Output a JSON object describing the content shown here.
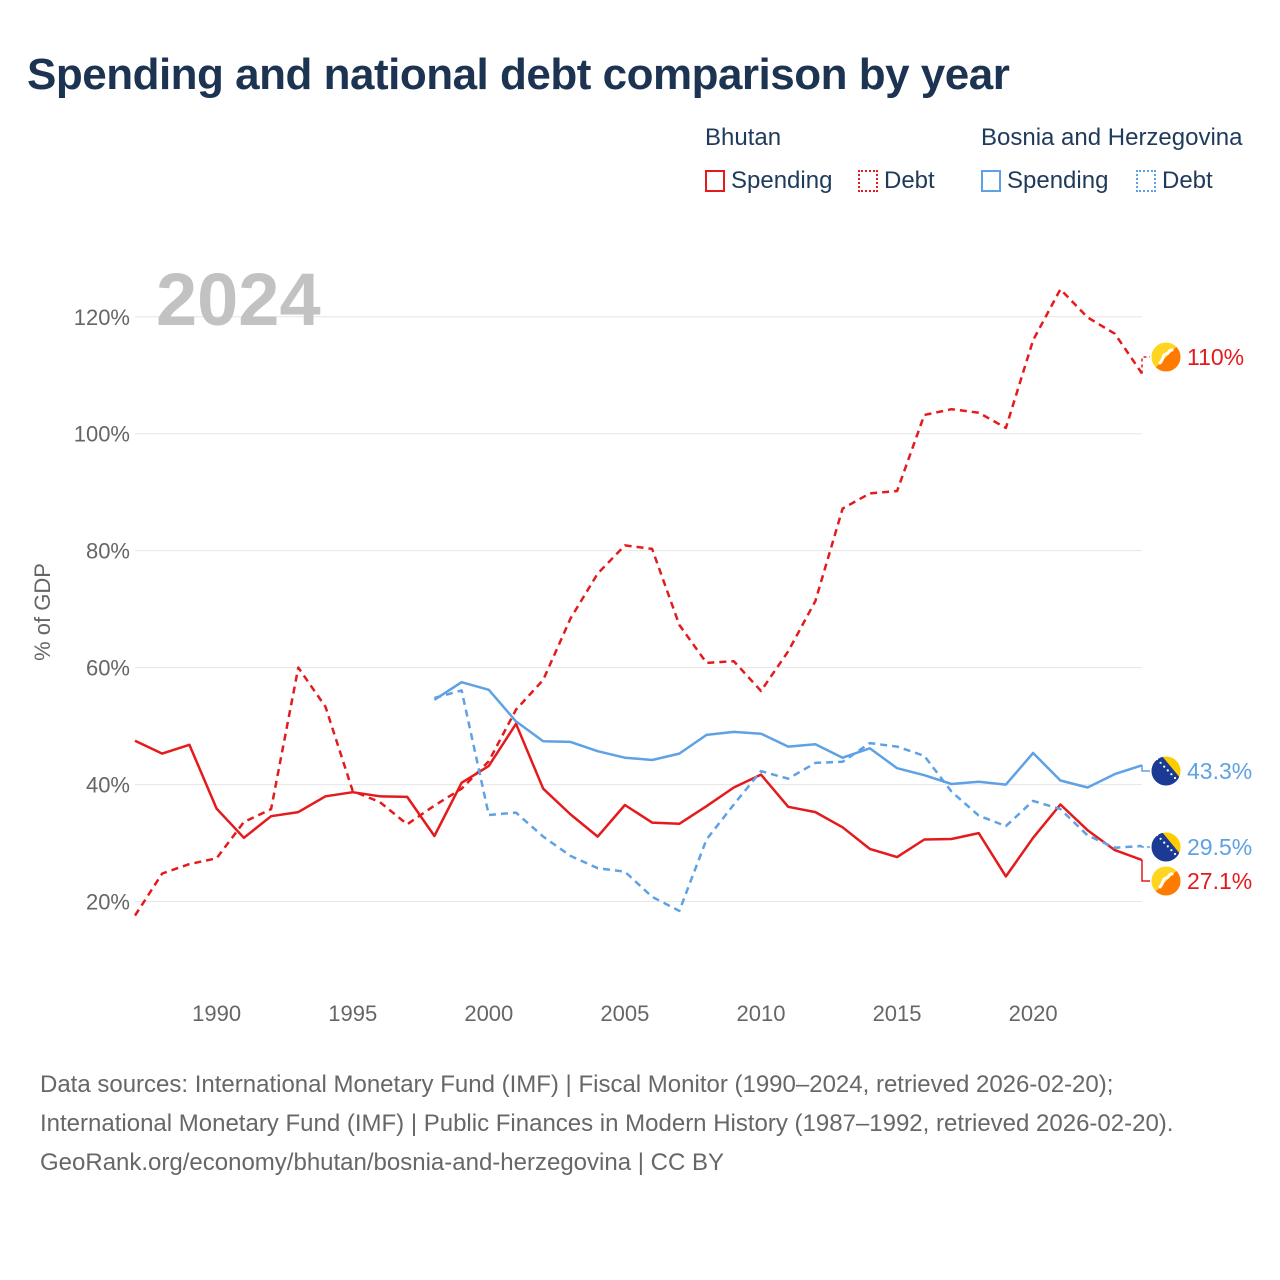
{
  "title": "Spending and national debt comparison by year",
  "legend": {
    "groups": [
      {
        "name": "Bhutan",
        "color": "#e41a1c",
        "items": [
          {
            "label": "Spending",
            "style": "solid"
          },
          {
            "label": "Debt",
            "style": "dotted"
          }
        ]
      },
      {
        "name": "Bosnia and Herzegovina",
        "color": "#5ea1e4",
        "items": [
          {
            "label": "Spending",
            "style": "solid"
          },
          {
            "label": "Debt",
            "style": "dotted"
          }
        ]
      }
    ]
  },
  "year_label": "2024",
  "source": {
    "line1": "Data sources: International Monetary Fund (IMF) | Fiscal Monitor (1990–2024, retrieved 2026-02-20); International Monetary Fund (IMF) | Public Finances in Modern History (1987–1992, retrieved 2026-02-20).",
    "line2": "GeoRank.org/economy/bhutan/bosnia-and-herzegovina | CC BY"
  },
  "chart_data": {
    "type": "line",
    "title": "Spending and national debt comparison by year",
    "xlabel": "",
    "ylabel": "% of GDP",
    "xlim": [
      1987,
      2024
    ],
    "ylim": [
      10,
      128
    ],
    "grid": true,
    "x_ticks": [
      1990,
      1995,
      2000,
      2005,
      2010,
      2015,
      2020
    ],
    "y_ticks": [
      20,
      40,
      60,
      80,
      100,
      120
    ],
    "y_tick_labels": [
      "20%",
      "40%",
      "60%",
      "80%",
      "100%",
      "120%"
    ],
    "series": [
      {
        "name": "Bhutan Spending",
        "country": "Bhutan",
        "color": "#e41a1c",
        "dash": "solid",
        "x": [
          1987,
          1988,
          1989,
          1990,
          1991,
          1992,
          1993,
          1994,
          1995,
          1996,
          1997,
          1998,
          1999,
          2000,
          2001,
          2002,
          2003,
          2004,
          2005,
          2006,
          2007,
          2008,
          2009,
          2010,
          2011,
          2012,
          2013,
          2014,
          2015,
          2016,
          2017,
          2018,
          2019,
          2020,
          2021,
          2022,
          2023,
          2024
        ],
        "values": [
          47.5,
          45.3,
          46.8,
          35.9,
          30.9,
          34.6,
          35.3,
          38.0,
          38.7,
          38.0,
          37.9,
          31.2,
          40.3,
          43.2,
          50.4,
          39.3,
          34.9,
          31.1,
          36.5,
          33.5,
          33.3,
          36.3,
          39.5,
          41.7,
          36.2,
          35.3,
          32.7,
          29.0,
          27.6,
          30.6,
          30.7,
          31.7,
          24.3,
          30.9,
          36.6,
          32.2,
          28.8,
          27.1
        ],
        "end_label": "27.1%",
        "flag": "bhutan"
      },
      {
        "name": "Bhutan Debt",
        "country": "Bhutan",
        "color": "#e41a1c",
        "dash": "dashed",
        "x": [
          1987,
          1988,
          1989,
          1990,
          1991,
          1992,
          1993,
          1994,
          1995,
          1996,
          1997,
          1998,
          1999,
          2000,
          2001,
          2002,
          2003,
          2004,
          2005,
          2006,
          2007,
          2008,
          2009,
          2010,
          2011,
          2012,
          2013,
          2014,
          2015,
          2016,
          2017,
          2018,
          2019,
          2020,
          2021,
          2022,
          2023,
          2024
        ],
        "values": [
          17.6,
          24.8,
          26.4,
          27.4,
          33.6,
          35.8,
          60.0,
          53.3,
          38.9,
          37.0,
          33.2,
          36.4,
          39.3,
          44.0,
          52.8,
          57.9,
          68.4,
          76.1,
          80.9,
          80.3,
          67.3,
          60.8,
          61.1,
          56.0,
          62.8,
          71.4,
          87.2,
          89.8,
          90.2,
          103.2,
          104.2,
          103.6,
          101.0,
          116.0,
          124.7,
          119.9,
          117.1,
          110.3
        ],
        "end_label": "110%",
        "flag": "bhutan"
      },
      {
        "name": "Bosnia and Herzegovina Spending",
        "country": "Bosnia and Herzegovina",
        "color": "#5ea1e4",
        "dash": "solid",
        "x": [
          1998,
          1999,
          2000,
          2001,
          2002,
          2003,
          2004,
          2005,
          2006,
          2007,
          2008,
          2009,
          2010,
          2011,
          2012,
          2013,
          2014,
          2015,
          2016,
          2017,
          2018,
          2019,
          2020,
          2021,
          2022,
          2023,
          2024
        ],
        "values": [
          54.5,
          57.5,
          56.2,
          50.8,
          47.4,
          47.3,
          45.7,
          44.6,
          44.2,
          45.3,
          48.5,
          49.0,
          48.7,
          46.5,
          46.9,
          44.6,
          46.2,
          42.8,
          41.6,
          40.1,
          40.5,
          40.0,
          45.4,
          40.7,
          39.5,
          41.8,
          43.3
        ],
        "end_label": "43.3%",
        "flag": "bosnia"
      },
      {
        "name": "Bosnia and Herzegovina Debt",
        "country": "Bosnia and Herzegovina",
        "color": "#5ea1e4",
        "dash": "dashed",
        "x": [
          1998,
          1999,
          2000,
          2001,
          2002,
          2003,
          2004,
          2005,
          2006,
          2007,
          2008,
          2009,
          2010,
          2011,
          2012,
          2013,
          2014,
          2015,
          2016,
          2017,
          2018,
          2019,
          2020,
          2021,
          2022,
          2023,
          2024
        ],
        "values": [
          54.8,
          56.1,
          34.8,
          35.2,
          31.1,
          27.8,
          25.7,
          25.1,
          20.8,
          18.4,
          30.6,
          36.6,
          42.3,
          41.0,
          43.7,
          43.9,
          47.1,
          46.5,
          44.9,
          38.8,
          34.7,
          32.9,
          37.2,
          35.8,
          31.3,
          29.2,
          29.5
        ],
        "end_label": "29.5%",
        "flag": "bosnia"
      }
    ]
  }
}
